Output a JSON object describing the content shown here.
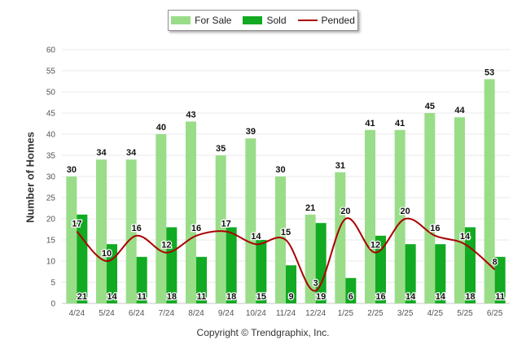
{
  "chart_data": {
    "type": "bar",
    "categories": [
      "4/24",
      "5/24",
      "6/24",
      "7/24",
      "8/24",
      "9/24",
      "10/24",
      "11/24",
      "12/24",
      "1/25",
      "2/25",
      "3/25",
      "4/25",
      "5/25",
      "6/25"
    ],
    "series": [
      {
        "name": "For Sale",
        "kind": "bar",
        "color": "#99dd88",
        "values": [
          30,
          34,
          34,
          40,
          43,
          35,
          39,
          30,
          21,
          31,
          41,
          41,
          45,
          44,
          53
        ]
      },
      {
        "name": "Sold",
        "kind": "bar",
        "color": "#11aa22",
        "values": [
          21,
          14,
          11,
          18,
          11,
          18,
          15,
          9,
          19,
          6,
          16,
          14,
          14,
          18,
          11
        ]
      },
      {
        "name": "Pended",
        "kind": "line",
        "color": "#aa0000",
        "values": [
          17,
          10,
          16,
          12,
          16,
          17,
          14,
          15,
          3,
          20,
          12,
          20,
          16,
          14,
          8
        ]
      }
    ],
    "xlabel": "",
    "ylabel": "Number of Homes",
    "ylim": [
      0,
      60
    ],
    "yticks": [
      0,
      5,
      10,
      15,
      20,
      25,
      30,
      35,
      40,
      45,
      50,
      55,
      60
    ],
    "grid": true,
    "legend_position": "top-center"
  },
  "copyright": "Copyright © Trendgraphix, Inc."
}
